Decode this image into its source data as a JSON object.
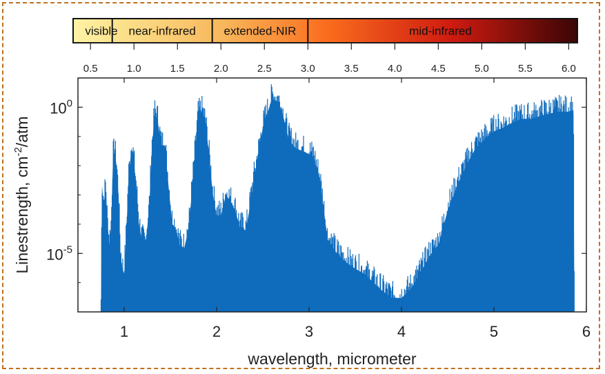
{
  "chart_data": {
    "type": "area",
    "xlabel": "wavelength, micrometer",
    "ylabel": "Linestrength, cm",
    "ylabel_sup": "-2",
    "ylabel_suffix": "/atm",
    "yscale": "log",
    "xlim": [
      0.5,
      6.0
    ],
    "ylim": [
      1e-07,
      10.0
    ],
    "xticks": [
      {
        "value": 1,
        "label": "1"
      },
      {
        "value": 2,
        "label": "2"
      },
      {
        "value": 3,
        "label": "3"
      },
      {
        "value": 4,
        "label": "4"
      },
      {
        "value": 5,
        "label": "5"
      },
      {
        "value": 6,
        "label": "6"
      }
    ],
    "yticks": [
      {
        "value": 1e-05,
        "base": "10",
        "exp": "-5"
      },
      {
        "value": 1,
        "base": "10",
        "exp": "0"
      }
    ],
    "top_axis": {
      "ticks": [
        "0.5",
        "1.0",
        "1.5",
        "2.0",
        "2.5",
        "3.0",
        "3.5",
        "4.0",
        "4.5",
        "5.0",
        "5.5",
        "6.0"
      ],
      "bands": [
        {
          "label": "visible",
          "from": 0.5,
          "to": 0.75
        },
        {
          "label": "near-infrared",
          "from": 0.75,
          "to": 1.9
        },
        {
          "label": "extended-NIR",
          "from": 1.9,
          "to": 3.0
        },
        {
          "label": "mid-infrared",
          "from": 3.0,
          "to": 6.05
        }
      ]
    },
    "series": [
      {
        "color": "#0f6cbd",
        "envelope": [
          [
            0.75,
            2e-07
          ],
          [
            0.76,
            0.002
          ],
          [
            0.78,
            0.0005
          ],
          [
            0.8,
            0.002
          ],
          [
            0.82,
            0.0001
          ],
          [
            0.84,
            2e-05
          ],
          [
            0.86,
            0.0001
          ],
          [
            0.88,
            0.02
          ],
          [
            0.9,
            0.03
          ],
          [
            0.92,
            0.008
          ],
          [
            0.94,
            0.0008
          ],
          [
            0.96,
            1e-05
          ],
          [
            0.98,
            3e-06
          ],
          [
            1.0,
            2e-06
          ],
          [
            1.02,
            3e-05
          ],
          [
            1.05,
            0.005
          ],
          [
            1.08,
            0.04
          ],
          [
            1.1,
            0.02
          ],
          [
            1.13,
            0.002
          ],
          [
            1.16,
            0.0001
          ],
          [
            1.19,
            3e-05
          ],
          [
            1.23,
            2e-05
          ],
          [
            1.27,
            0.0003
          ],
          [
            1.3,
            0.04
          ],
          [
            1.33,
            0.6
          ],
          [
            1.36,
            0.4
          ],
          [
            1.4,
            0.05
          ],
          [
            1.44,
            0.05
          ],
          [
            1.48,
            0.002
          ],
          [
            1.52,
            0.0001
          ],
          [
            1.55,
            8e-05
          ],
          [
            1.6,
            2e-05
          ],
          [
            1.65,
            1.5e-05
          ],
          [
            1.7,
            8e-05
          ],
          [
            1.75,
            0.006
          ],
          [
            1.8,
            0.5
          ],
          [
            1.84,
            0.7
          ],
          [
            1.88,
            0.3
          ],
          [
            1.92,
            0.02
          ],
          [
            1.96,
            0.001
          ],
          [
            2.0,
            0.0002
          ],
          [
            2.05,
            0.0002
          ],
          [
            2.1,
            0.001
          ],
          [
            2.15,
            0.0006
          ],
          [
            2.2,
            0.0003
          ],
          [
            2.25,
            8e-05
          ],
          [
            2.32,
            6e-05
          ],
          [
            2.4,
            0.003
          ],
          [
            2.5,
            0.2
          ],
          [
            2.6,
            2.0
          ],
          [
            2.67,
            1.5
          ],
          [
            2.72,
            0.5
          ],
          [
            2.78,
            0.08
          ],
          [
            2.85,
            0.04
          ],
          [
            2.95,
            0.03
          ],
          [
            3.05,
            0.02
          ],
          [
            3.12,
            0.003
          ],
          [
            3.2,
            3e-05
          ],
          [
            3.3,
            1e-05
          ],
          [
            3.4,
            5e-06
          ],
          [
            3.5,
            3e-06
          ],
          [
            3.6,
            2e-06
          ],
          [
            3.7,
            1e-06
          ],
          [
            3.8,
            5e-07
          ],
          [
            3.9,
            3e-07
          ],
          [
            4.0,
            3e-07
          ],
          [
            4.1,
            6e-07
          ],
          [
            4.2,
            2e-06
          ],
          [
            4.3,
            8e-06
          ],
          [
            4.4,
            2e-05
          ],
          [
            4.5,
            0.0003
          ],
          [
            4.6,
            0.002
          ],
          [
            4.7,
            0.01
          ],
          [
            4.8,
            0.04
          ],
          [
            4.9,
            0.08
          ],
          [
            5.0,
            0.15
          ],
          [
            5.1,
            0.2
          ],
          [
            5.2,
            0.3
          ],
          [
            5.3,
            0.4
          ],
          [
            5.4,
            0.4
          ],
          [
            5.5,
            0.5
          ],
          [
            5.6,
            0.6
          ],
          [
            5.7,
            0.7
          ],
          [
            5.8,
            0.7
          ],
          [
            5.86,
            0.8
          ],
          [
            5.87,
            1e-07
          ]
        ]
      }
    ]
  }
}
